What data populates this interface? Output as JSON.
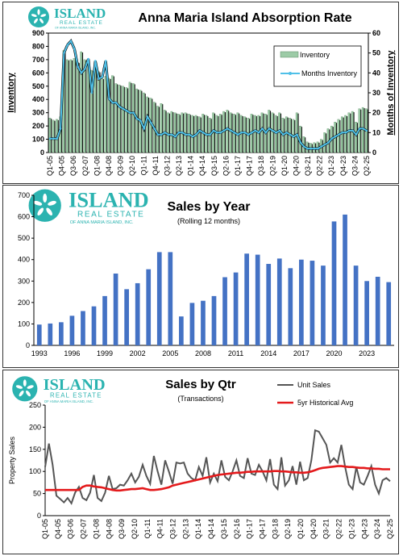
{
  "brand": {
    "name": "ISLAND",
    "tagline": "REAL ESTATE",
    "subline": "OF ANNA MARIA ISLAND, INC."
  },
  "colors": {
    "bar_main": "#9ccba6",
    "bar_shadow": "#111111",
    "months_line": "#4fc0e8",
    "year_bar": "#4472c4",
    "unit_line": "#555555",
    "avg_line": "#e41a1c",
    "brand": "#2bb3b0"
  },
  "chart_data": [
    {
      "type": "bar",
      "title": "Anna Maria Island Absorption Rate",
      "ylabel": "Inventory",
      "y2label": "Months of Inventory",
      "ylim": [
        0,
        900
      ],
      "y2lim": [
        0,
        60
      ],
      "yticks": [
        0,
        100,
        200,
        300,
        400,
        500,
        600,
        700,
        800,
        900
      ],
      "y2ticks": [
        0,
        10,
        20,
        30,
        40,
        50,
        60
      ],
      "x_tick_labels": [
        "Q1-05",
        "Q4-05",
        "Q3-06",
        "Q2-07",
        "Q1-08",
        "Q4-08",
        "Q3-09",
        "Q2-10",
        "Q1-11",
        "Q4-11",
        "Q3-12",
        "Q2-13",
        "Q1-14",
        "Q4-14",
        "Q3-15",
        "Q2-16",
        "Q1-17",
        "Q4-17",
        "Q3-18",
        "Q2-19",
        "Q1-20",
        "Q4-20",
        "Q3-21",
        "Q2-22",
        "Q1-23",
        "Q4-23",
        "Q3-24",
        "Q2-25"
      ],
      "legend": "top-right",
      "series": [
        {
          "name": "Inventory",
          "axis": "left",
          "values": [
            260,
            245,
            250,
            270,
            770,
            700,
            700,
            710,
            680,
            760,
            700,
            660,
            620,
            660,
            610,
            560,
            575,
            560,
            580,
            520,
            510,
            500,
            490,
            530,
            520,
            480,
            470,
            450,
            420,
            410,
            380,
            350,
            370,
            320,
            300,
            310,
            300,
            290,
            300,
            300,
            290,
            280,
            280,
            270,
            290,
            280,
            260,
            300,
            280,
            290,
            310,
            320,
            300,
            290,
            300,
            280,
            270,
            260,
            290,
            280,
            280,
            300,
            290,
            320,
            300,
            280,
            300,
            260,
            270,
            260,
            250,
            300,
            200,
            120,
            80,
            70,
            75,
            80,
            100,
            150,
            180,
            200,
            230,
            250,
            270,
            280,
            300,
            310,
            230,
            330,
            340,
            330
          ]
        },
        {
          "name": "Months Inventory",
          "axis": "right",
          "values": [
            7,
            7,
            7,
            12,
            50,
            54,
            56,
            52,
            43,
            40,
            42,
            47,
            30,
            46,
            37,
            38,
            46,
            27,
            25,
            25,
            23,
            22,
            21,
            20,
            20,
            17,
            16,
            12,
            18,
            15,
            12,
            9,
            9,
            10,
            9,
            9,
            8,
            10,
            10,
            9,
            9,
            8,
            9,
            11,
            10,
            9,
            9,
            11,
            10,
            10,
            11,
            12,
            11,
            10,
            9,
            10,
            10,
            9,
            10,
            11,
            10,
            12,
            10,
            12,
            11,
            10,
            11,
            9,
            10,
            9,
            8,
            9,
            5,
            3,
            2,
            2,
            2,
            2,
            3,
            4,
            5,
            7,
            8,
            9,
            10,
            10,
            11,
            11,
            9,
            12,
            12,
            11
          ]
        }
      ]
    },
    {
      "type": "bar",
      "title": "Sales by Year",
      "subtitle": "(Rolling 12 months)",
      "ylim": [
        0,
        700
      ],
      "yticks": [
        0,
        100,
        200,
        300,
        400,
        500,
        600,
        700
      ],
      "categories": [
        1993,
        1994,
        1995,
        1996,
        1997,
        1998,
        1999,
        2000,
        2001,
        2002,
        2003,
        2004,
        2005,
        2006,
        2007,
        2008,
        2009,
        2010,
        2011,
        2012,
        2013,
        2014,
        2015,
        2016,
        2017,
        2018,
        2019,
        2020,
        2021,
        2022,
        2023,
        2024,
        2025
      ],
      "x_tick_labels": [
        "1993",
        "1996",
        "1999",
        "2002",
        "2005",
        "2008",
        "2011",
        "2014",
        "2017",
        "2020",
        "2023"
      ],
      "values": [
        97,
        102,
        108,
        138,
        160,
        182,
        230,
        335,
        262,
        290,
        355,
        435,
        435,
        135,
        198,
        208,
        230,
        318,
        340,
        428,
        423,
        380,
        405,
        360,
        400,
        395,
        372,
        578,
        610,
        372,
        300,
        320,
        295
      ]
    },
    {
      "type": "line",
      "title": "Sales by Qtr",
      "subtitle": "(Transactions)",
      "ylabel": "Property Sales",
      "ylim": [
        0,
        250
      ],
      "yticks": [
        0,
        50,
        100,
        150,
        200,
        250
      ],
      "x_tick_labels": [
        "Q1-05",
        "Q4-05",
        "Q3-06",
        "Q2-07",
        "Q1-08",
        "Q4-08",
        "Q3-09",
        "Q2-10",
        "Q1-11",
        "Q4-11",
        "Q3-12",
        "Q2-13",
        "Q1-14",
        "Q4-14",
        "Q3-15",
        "Q2-16",
        "Q1-17",
        "Q4-17",
        "Q3-18",
        "Q2-19",
        "Q1-20",
        "Q4-20",
        "Q3-21",
        "Q2-22",
        "Q1-23",
        "Q4-23",
        "Q3-24",
        "Q2-25"
      ],
      "legend": "top-right",
      "series": [
        {
          "name": "Unit Sales",
          "values": [
            110,
            163,
            115,
            45,
            38,
            30,
            40,
            28,
            52,
            65,
            40,
            35,
            52,
            92,
            40,
            33,
            52,
            90,
            60,
            62,
            70,
            68,
            80,
            95,
            75,
            88,
            115,
            90,
            72,
            135,
            100,
            70,
            125,
            100,
            72,
            120,
            118,
            120,
            95,
            85,
            80,
            110,
            90,
            132,
            75,
            95,
            78,
            125,
            88,
            80,
            100,
            125,
            90,
            85,
            130,
            95,
            92,
            115,
            100,
            80,
            128,
            70,
            60,
            132,
            68,
            80,
            112,
            70,
            122,
            80,
            85,
            125,
            193,
            190,
            175,
            160,
            120,
            130,
            120,
            160,
            110,
            70,
            60,
            110,
            75,
            70,
            90,
            112,
            70,
            50,
            80,
            85,
            78
          ]
        },
        {
          "name": "5yr Historical Avg",
          "values": [
            58,
            58,
            58,
            58,
            58,
            58,
            58,
            58,
            58,
            58,
            65,
            68,
            68,
            66,
            65,
            64,
            62,
            60,
            58,
            57,
            57,
            58,
            59,
            60,
            60,
            61,
            62,
            60,
            58,
            58,
            59,
            60,
            62,
            64,
            68,
            70,
            72,
            74,
            76,
            78,
            80,
            82,
            84,
            86,
            88,
            90,
            92,
            93,
            94,
            95,
            96,
            97,
            97,
            98,
            99,
            99,
            100,
            100,
            100,
            100,
            100,
            101,
            101,
            100,
            100,
            99,
            98,
            98,
            97,
            97,
            98,
            100,
            103,
            106,
            108,
            109,
            110,
            111,
            112,
            112,
            111,
            110,
            110,
            109,
            108,
            108,
            107,
            107,
            106,
            106,
            105,
            105,
            105
          ]
        }
      ]
    }
  ]
}
